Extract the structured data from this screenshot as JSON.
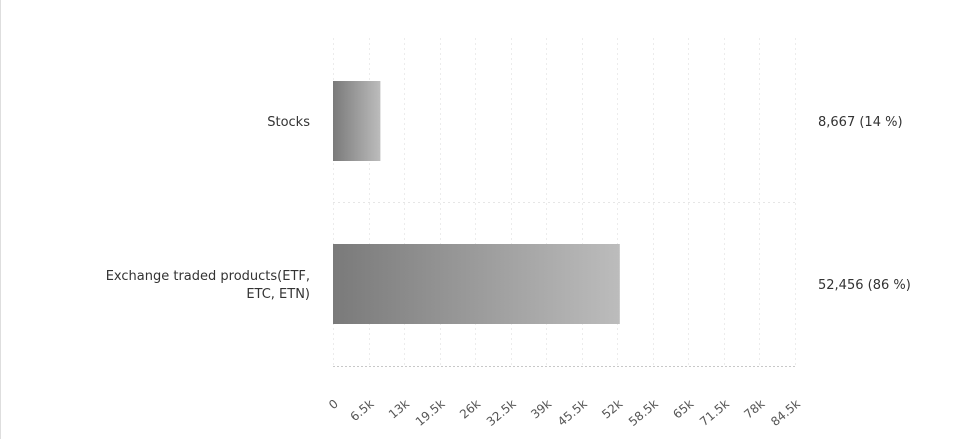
{
  "chart_data": {
    "type": "bar",
    "orientation": "horizontal",
    "categories": [
      "Stocks",
      "Exchange traded products(ETF,\nETC, ETN)"
    ],
    "values": [
      8667,
      52456
    ],
    "value_labels": [
      "8,667 (14 %)",
      "52,456 (86 %)"
    ],
    "xlim": [
      0,
      84500
    ],
    "x_ticks": [
      0,
      6500,
      13000,
      19500,
      26000,
      32500,
      39000,
      45500,
      52000,
      58500,
      65000,
      71500,
      78000,
      84500
    ],
    "x_tick_labels": [
      "0",
      "6.5k",
      "13k",
      "19.5k",
      "26k",
      "32.5k",
      "39k",
      "45.5k",
      "52k",
      "58.5k",
      "65k",
      "71.5k",
      "78k",
      "84.5k"
    ],
    "grid": true,
    "legend": "none",
    "colors": {
      "bar_dark": "#7a7a7a",
      "bar_light": "#bcbcbc"
    }
  }
}
